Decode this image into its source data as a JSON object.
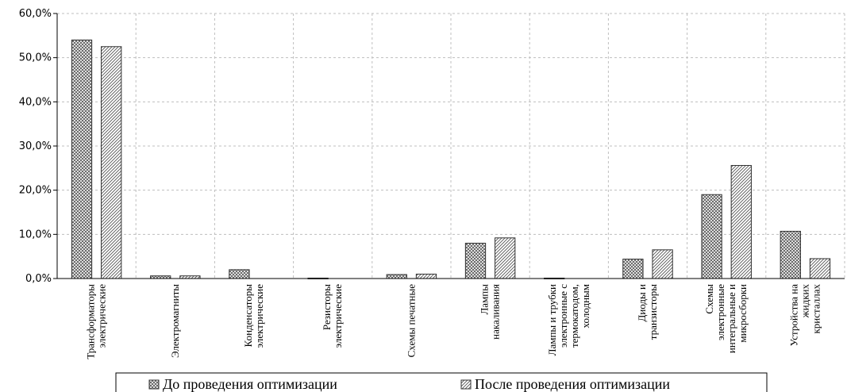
{
  "chart_data": {
    "type": "bar",
    "grid": true,
    "legend_position": "bottom",
    "ylim": [
      0,
      60
    ],
    "y_ticks": [
      "0,0%",
      "10,0%",
      "20,0%",
      "30,0%",
      "40,0%",
      "50,0%",
      "60,0%"
    ],
    "categories": [
      [
        "Трансформаторы",
        "электрические"
      ],
      [
        "Электромагниты"
      ],
      [
        "Конденсаторы",
        "электрические"
      ],
      [
        "Резисторы",
        "электрические"
      ],
      [
        "Схемы печатные"
      ],
      [
        "Лампы",
        "накаливания"
      ],
      [
        "Лампы и трубки",
        "электронные с",
        "термокатодом,",
        "холодным"
      ],
      [
        "Диоды и",
        "транзисторы"
      ],
      [
        "Схемы",
        "электронные",
        "интегральные и",
        "микросборки"
      ],
      [
        "Устройства на",
        "жидких",
        "кристаллах"
      ]
    ],
    "series": [
      {
        "name": "До проведения оптимизации",
        "values": [
          54.0,
          0.6,
          2.0,
          0.1,
          0.9,
          8.0,
          0.1,
          4.4,
          19.0,
          10.7
        ]
      },
      {
        "name": "После проведения оптимизации",
        "values": [
          52.5,
          0.6,
          0.0,
          0.0,
          1.0,
          9.2,
          0.0,
          6.5,
          25.6,
          4.5
        ]
      }
    ],
    "colors": {
      "bar_stroke": "#333333",
      "grid": "#bfbfbf",
      "axis": "#000000"
    }
  }
}
